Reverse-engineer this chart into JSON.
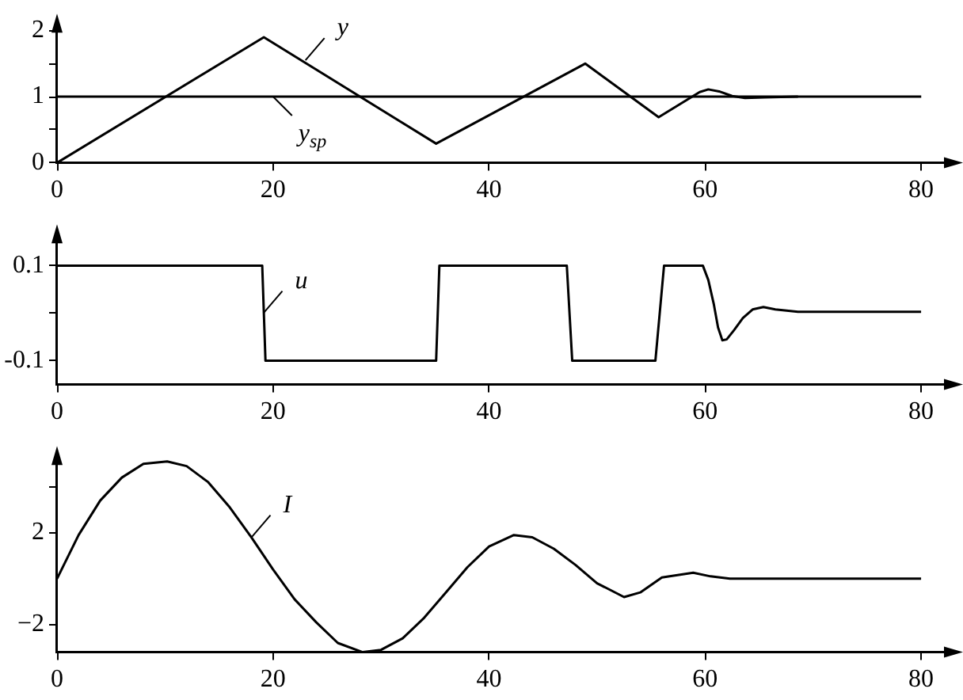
{
  "chart_data": [
    {
      "type": "line",
      "xlim": [
        0,
        83
      ],
      "xticks": [
        0,
        20,
        40,
        60,
        80
      ],
      "ylim": [
        0,
        2.16
      ],
      "yticks": [
        0,
        {
          "value": 0.5,
          "label": null
        },
        1,
        {
          "value": 1.5,
          "label": null
        },
        2
      ],
      "grid": false,
      "legend": false,
      "marker": "none",
      "line_style": "solid",
      "series": [
        {
          "color": "#000000",
          "x": [
            0,
            19.15,
            35.1,
            48.9,
            55.7,
            59.5,
            60.3,
            61.3,
            62.5,
            63.7,
            65.5,
            68.6
          ],
          "values": [
            0,
            1.9,
            0.29,
            1.5,
            0.69,
            1.07,
            1.11,
            1.08,
            1.01,
            0.98,
            0.99,
            1.0
          ]
        }
      ],
      "ref_lines": [
        {
          "axis": "y",
          "value": 1,
          "color": "#000000"
        }
      ],
      "annotations": [
        {
          "text": "y",
          "x": 23,
          "y": 1.55
        },
        {
          "text": "y$_{sp}$",
          "x": 20,
          "y": 1
        }
      ]
    },
    {
      "type": "line",
      "xlim": [
        0,
        83
      ],
      "xticks": [
        0,
        20,
        40,
        60,
        80
      ],
      "ylim": [
        -0.15,
        0.174
      ],
      "yticks": [
        -0.1,
        {
          "value": 0,
          "label": null
        },
        0.1
      ],
      "grid": false,
      "legend": false,
      "marker": "none",
      "line_style": "solid",
      "series": [
        {
          "color": "#000000",
          "x": [
            0,
            19.0,
            19.3,
            35.1,
            35.4,
            47.2,
            47.7,
            55.4,
            56.2,
            59.8,
            60.3,
            60.8,
            61.2,
            61.6,
            62,
            62.7,
            63.5,
            64.4,
            65.4,
            66.5,
            68.6,
            80
          ],
          "values": [
            0.1,
            0.1,
            -0.1,
            -0.1,
            0.1,
            0.1,
            -0.1,
            -0.1,
            0.1,
            0.1,
            0.07,
            0.02,
            -0.03,
            -0.057,
            -0.055,
            -0.035,
            -0.01,
            0.008,
            0.013,
            0.008,
            0.003,
            0.003
          ]
        }
      ],
      "annotations": [
        {
          "text": "u",
          "x": 19.1,
          "y": 0.0
        }
      ]
    },
    {
      "type": "line",
      "xlim": [
        0,
        83
      ],
      "xticks": [
        0,
        20,
        40,
        60,
        80
      ],
      "ylim": [
        -3.2,
        5.5
      ],
      "yticks": [
        {
          "value": -2,
          "label": "−2"
        },
        2,
        {
          "value": 4,
          "label": null
        }
      ],
      "grid": false,
      "legend": false,
      "marker": "none",
      "line_style": "solid",
      "series": [
        {
          "color": "#000000",
          "x": [
            0,
            2,
            4,
            6,
            8,
            10.2,
            12,
            14,
            16,
            18,
            20,
            22,
            24,
            26,
            28.3,
            30,
            32,
            34,
            36,
            38,
            40,
            42.3,
            44,
            46,
            48,
            50,
            52.5,
            54,
            56,
            58.9,
            60.5,
            62.3,
            80
          ],
          "values": [
            0,
            1.9,
            3.4,
            4.4,
            5.0,
            5.1,
            4.9,
            4.2,
            3.1,
            1.8,
            0.4,
            -0.9,
            -1.9,
            -2.8,
            -3.2,
            -3.1,
            -2.6,
            -1.7,
            -0.6,
            0.5,
            1.4,
            1.9,
            1.8,
            1.3,
            0.6,
            -0.2,
            -0.8,
            -0.6,
            0.05,
            0.26,
            0.1,
            0,
            0
          ]
        }
      ],
      "annotations": [
        {
          "text": "I",
          "x": 18,
          "y": 1.8
        }
      ]
    }
  ]
}
